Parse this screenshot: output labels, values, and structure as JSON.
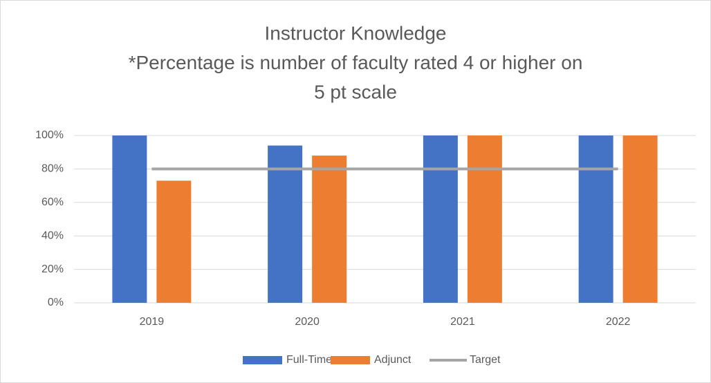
{
  "chart_data": {
    "type": "bar",
    "title": [
      "Instructor Knowledge",
      "*Percentage is number of faculty rated 4 or higher on",
      "5 pt scale"
    ],
    "categories": [
      "2019",
      "2020",
      "2021",
      "2022"
    ],
    "series": [
      {
        "name": "Full-Time",
        "color": "#4472c4",
        "type": "bar",
        "values": [
          100,
          94,
          100,
          100
        ]
      },
      {
        "name": "Adjunct",
        "color": "#ed7d31",
        "type": "bar",
        "values": [
          73,
          88,
          100,
          100
        ]
      },
      {
        "name": "Target",
        "color": "#a5a5a5",
        "type": "line",
        "values": [
          80,
          80,
          80,
          80
        ]
      }
    ],
    "ylim": [
      0,
      100
    ],
    "yticks": [
      {
        "value": 0,
        "label": "0%"
      },
      {
        "value": 20,
        "label": "20%"
      },
      {
        "value": 40,
        "label": "40%"
      },
      {
        "value": 60,
        "label": "60%"
      },
      {
        "value": 80,
        "label": "80%"
      },
      {
        "value": 100,
        "label": "100%"
      }
    ],
    "grid": true,
    "legend": "bottom"
  }
}
